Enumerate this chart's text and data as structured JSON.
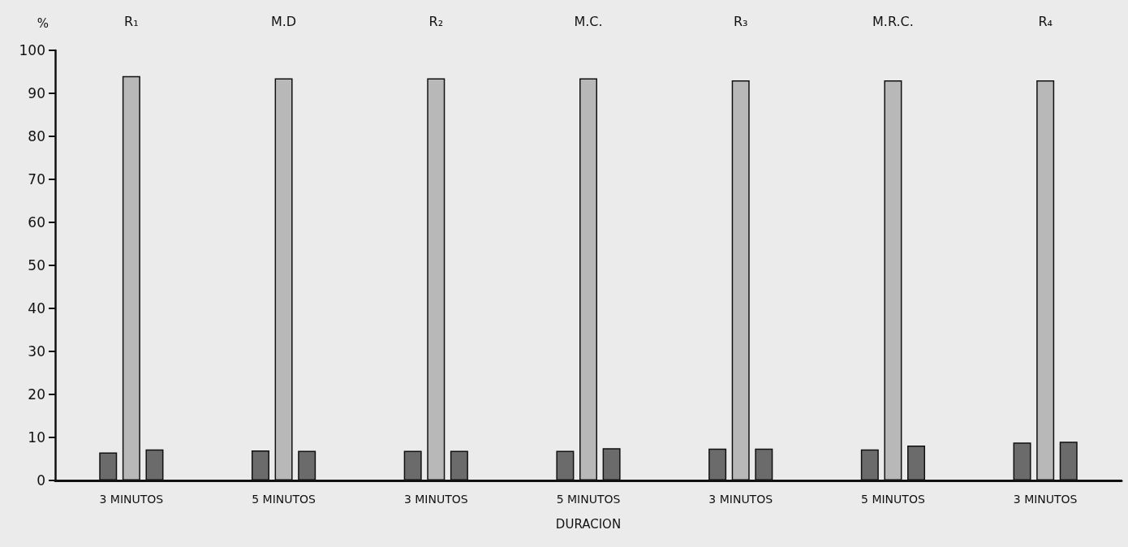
{
  "chart_data": {
    "type": "bar",
    "ylabel": "%",
    "xlabel": "DURACION",
    "categories": [
      "3 MINUTOS",
      "5 MINUTOS",
      "3 MINUTOS",
      "5 MINUTOS",
      "3 MINUTOS",
      "5 MINUTOS",
      "3 MINUTOS"
    ],
    "series": [
      {
        "color": "#6b6b6b",
        "values": [
          6.5,
          7.0,
          6.9,
          6.9,
          7.4,
          7.2,
          8.8
        ]
      },
      {
        "color": "#b8b8b8",
        "values": [
          94,
          93.5,
          93.5,
          93.5,
          93,
          93,
          93
        ]
      },
      {
        "color": "#6b6b6b",
        "values": [
          7.2,
          6.9,
          6.9,
          7.5,
          7.4,
          8.1,
          9.0
        ]
      }
    ],
    "annotations": [
      "R₁",
      "M.D",
      "R₂",
      "M.C.",
      "R₃",
      "M.R.C.",
      "R₄"
    ],
    "ylim": [
      0,
      100
    ],
    "yticks": [
      0,
      10,
      20,
      30,
      40,
      50,
      60,
      70,
      80,
      90,
      100
    ]
  }
}
